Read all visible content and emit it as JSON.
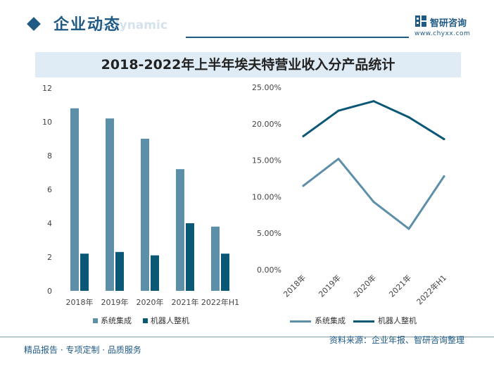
{
  "header": {
    "title": "企业动态",
    "ghost_text": "e dynamic",
    "logo_name": "智研咨询",
    "site": "www.chyxx.com"
  },
  "footer": {
    "left": "精品报告 · 专项定制 · 品质服务",
    "right": "资料来源：企业年报、智研咨询整理"
  },
  "colors": {
    "accent": "#1f5a85",
    "series_light": "#5e8fa9",
    "series_dark": "#0a5776",
    "title_band": "#dfecf5"
  },
  "chart_data": [
    {
      "type": "bar",
      "title": "2018-2022年上半年埃夫特营业收入分产品统计",
      "categories": [
        "2018年",
        "2019年",
        "2020年",
        "2021年",
        "2022年H1"
      ],
      "ylim": [
        0,
        12
      ],
      "yticks": [
        "0",
        "2",
        "4",
        "6",
        "8",
        "10",
        "12"
      ],
      "grid": false,
      "legend_position": "bottom",
      "series": [
        {
          "name": "系统集成",
          "color": "#5e8fa9",
          "values": [
            10.8,
            10.2,
            9.0,
            7.2,
            3.8
          ]
        },
        {
          "name": "机器人整机",
          "color": "#0a5776",
          "values": [
            2.2,
            2.3,
            2.1,
            4.0,
            2.2
          ]
        }
      ]
    },
    {
      "type": "line",
      "categories": [
        "2018年",
        "2019年",
        "2020年",
        "2021年",
        "2022年H1"
      ],
      "ylim": [
        0,
        25
      ],
      "yticks": [
        "0.00%",
        "5.00%",
        "10.00%",
        "15.00%",
        "20.00%",
        "25.00%"
      ],
      "grid": false,
      "legend_position": "bottom",
      "series": [
        {
          "name": "系统集成",
          "color": "#5e8fa9",
          "values": [
            11.5,
            15.2,
            9.3,
            5.6,
            12.8
          ]
        },
        {
          "name": "机器人整机",
          "color": "#0a5776",
          "values": [
            18.3,
            21.8,
            23.1,
            20.9,
            17.9
          ]
        }
      ]
    }
  ]
}
